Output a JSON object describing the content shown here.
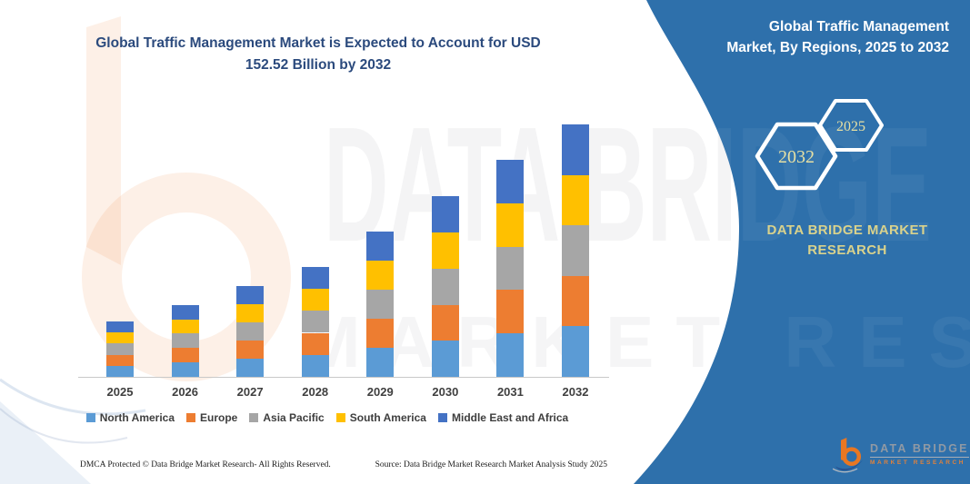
{
  "title": {
    "line1": "Global Traffic Management Market is Expected to Account for USD",
    "line2": "152.52 Billion by 2032"
  },
  "right_panel": {
    "heading_line1": "Global Traffic Management",
    "heading_line2": "Market, By Regions, 2025 to 2032",
    "hexagon_back_label": "2025",
    "hexagon_front_label": "2032",
    "brand_line1": "DATA BRIDGE MARKET",
    "brand_line2": "RESEARCH",
    "background_color": "#2e70ab",
    "hexagon_label_color": "#e7e0a3",
    "brand_text_color": "#d9d28c"
  },
  "logo": {
    "wordmark": "DATA BRIDGE",
    "tagline": "MARKET RESEARCH"
  },
  "watermark": {
    "line1": "DATA BRIDGE",
    "line2": "MARKET RESEARCH"
  },
  "chart_data": {
    "type": "bar",
    "stacked": true,
    "unit": "USD Billion",
    "title": "Global Traffic Management Market, By Regions, 2025 to 2032",
    "categories": [
      "2025",
      "2026",
      "2027",
      "2028",
      "2029",
      "2030",
      "2031",
      "2032"
    ],
    "series": [
      {
        "name": "North America",
        "color": "#5b9bd5",
        "values": [
          6.7,
          8.7,
          11.0,
          13.3,
          17.6,
          21.8,
          26.2,
          30.5
        ]
      },
      {
        "name": "Europe",
        "color": "#ed7d31",
        "values": [
          6.7,
          8.7,
          11.0,
          13.3,
          17.6,
          21.8,
          26.2,
          30.5
        ]
      },
      {
        "name": "Asia Pacific",
        "color": "#a6a6a6",
        "values": [
          6.7,
          8.7,
          11.0,
          13.3,
          17.6,
          21.8,
          26.2,
          30.5
        ]
      },
      {
        "name": "South America",
        "color": "#ffc000",
        "values": [
          6.7,
          8.7,
          11.0,
          13.3,
          17.6,
          21.8,
          26.2,
          30.5
        ]
      },
      {
        "name": "Middle East and Africa",
        "color": "#4472c4",
        "values": [
          6.7,
          8.7,
          11.0,
          13.3,
          17.6,
          21.8,
          26.2,
          30.5
        ]
      }
    ],
    "totals": [
      33.5,
      43.3,
      54.9,
      66.4,
      87.8,
      109.2,
      131.1,
      152.5
    ],
    "highlight_value": "USD 152.52 Billion by 2032",
    "ylim": [
      0,
      160
    ],
    "gridlines": false,
    "legend_position": "bottom",
    "values_estimated_from_pixels": true
  },
  "footer": {
    "dmca": "DMCA Protected © Data Bridge Market Research-  All Rights Reserved.",
    "source": "Source: Data Bridge Market Research  Market Analysis Study 2025"
  }
}
